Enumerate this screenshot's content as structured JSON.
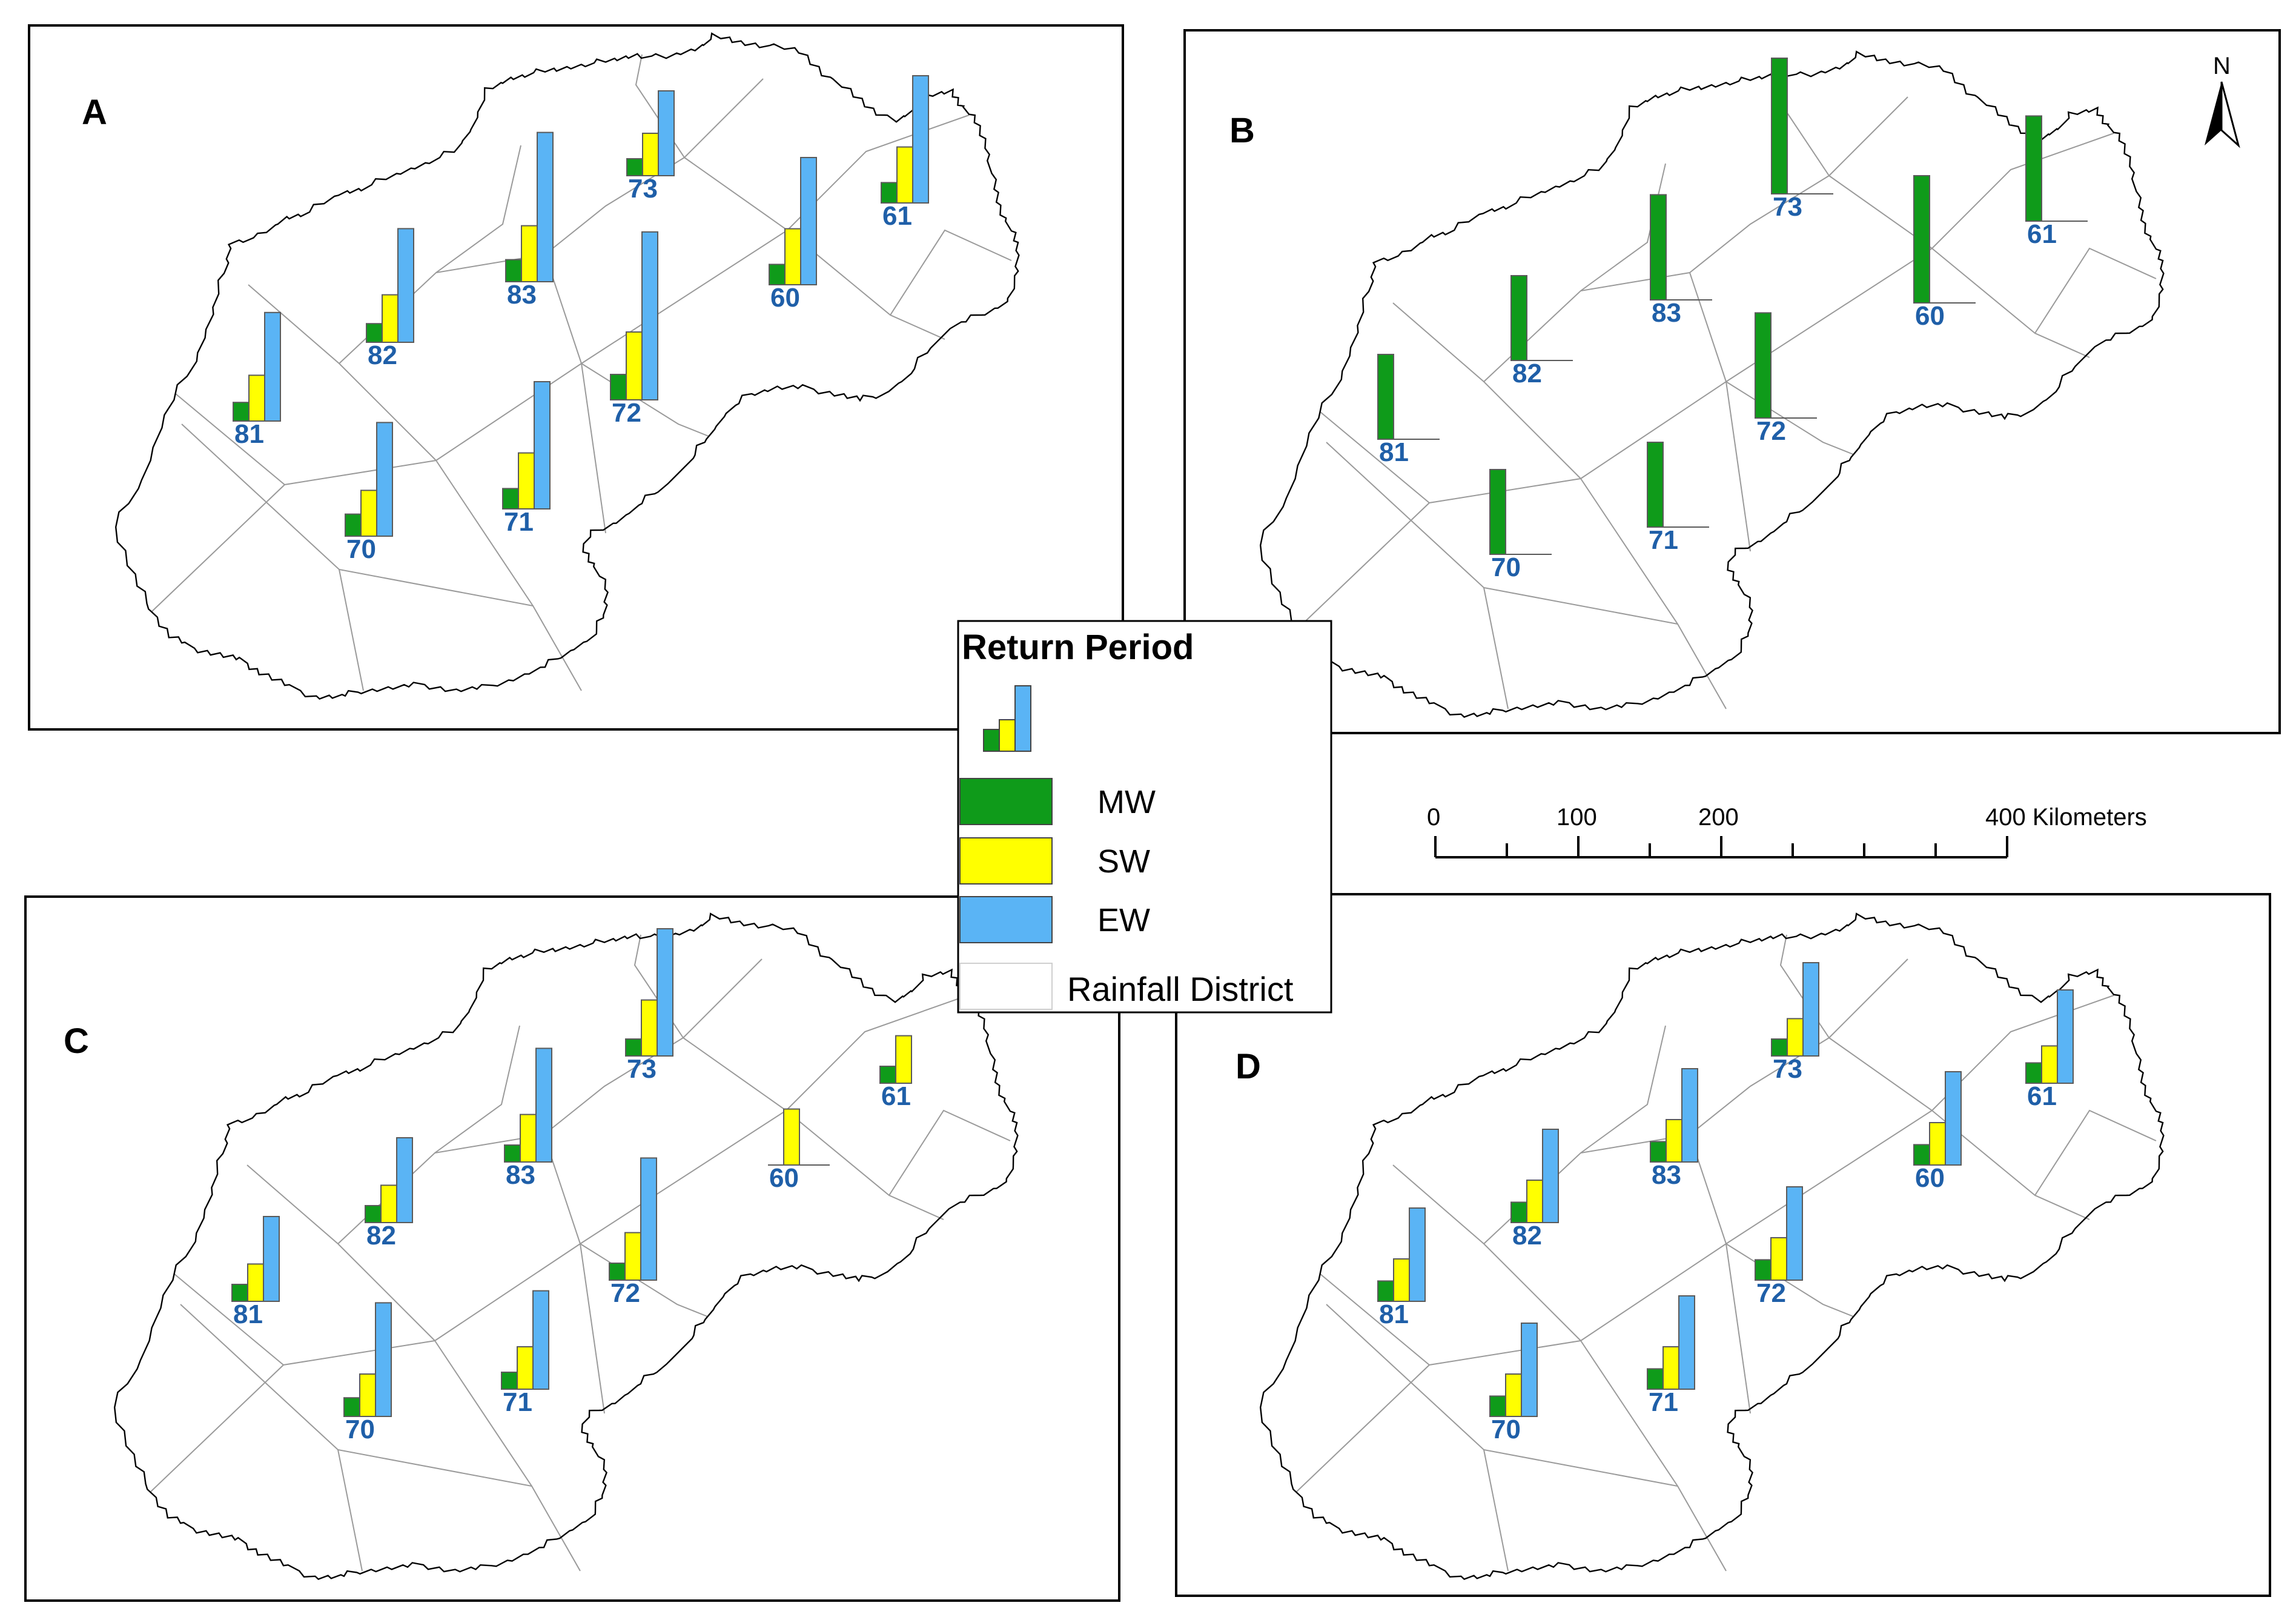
{
  "colors": {
    "MW": "#0f9b1a",
    "SW": "#ffff00",
    "EW": "#5ab4f5",
    "label": "#1f5fa8",
    "boundary": "#000000",
    "district_line": "#9a9a9a"
  },
  "panels": [
    {
      "letter": "A",
      "stations": [
        {
          "id": "73",
          "MW": 0.1,
          "SW": 0.25,
          "EW": 0.5
        },
        {
          "id": "61",
          "MW": 0.12,
          "SW": 0.33,
          "EW": 0.75
        },
        {
          "id": "83",
          "MW": 0.13,
          "SW": 0.33,
          "EW": 0.88
        },
        {
          "id": "60",
          "MW": 0.12,
          "SW": 0.33,
          "EW": 0.75
        },
        {
          "id": "82",
          "MW": 0.11,
          "SW": 0.28,
          "EW": 0.67
        },
        {
          "id": "72",
          "MW": 0.15,
          "SW": 0.4,
          "EW": 0.99
        },
        {
          "id": "81",
          "MW": 0.11,
          "SW": 0.27,
          "EW": 0.64
        },
        {
          "id": "70",
          "MW": 0.13,
          "SW": 0.27,
          "EW": 0.67
        },
        {
          "id": "71",
          "MW": 0.12,
          "SW": 0.33,
          "EW": 0.75
        }
      ]
    },
    {
      "letter": "B",
      "stations": [
        {
          "id": "73",
          "MW": 0.8,
          "SW": 0,
          "EW": 0
        },
        {
          "id": "61",
          "MW": 0.62,
          "SW": 0,
          "EW": 0
        },
        {
          "id": "83",
          "MW": 0.62,
          "SW": 0,
          "EW": 0
        },
        {
          "id": "60",
          "MW": 0.75,
          "SW": 0,
          "EW": 0
        },
        {
          "id": "82",
          "MW": 0.5,
          "SW": 0,
          "EW": 0
        },
        {
          "id": "72",
          "MW": 0.62,
          "SW": 0,
          "EW": 0
        },
        {
          "id": "81",
          "MW": 0.5,
          "SW": 0,
          "EW": 0
        },
        {
          "id": "70",
          "MW": 0.5,
          "SW": 0,
          "EW": 0
        },
        {
          "id": "71",
          "MW": 0.5,
          "SW": 0,
          "EW": 0
        }
      ]
    },
    {
      "letter": "C",
      "stations": [
        {
          "id": "73",
          "MW": 0.1,
          "SW": 0.33,
          "EW": 0.75
        },
        {
          "id": "61",
          "MW": 0.1,
          "SW": 0.28,
          "EW": 0
        },
        {
          "id": "83",
          "MW": 0.1,
          "SW": 0.28,
          "EW": 0.67
        },
        {
          "id": "60",
          "MW": 0,
          "SW": 0.33,
          "EW": 0
        },
        {
          "id": "82",
          "MW": 0.1,
          "SW": 0.22,
          "EW": 0.5
        },
        {
          "id": "72",
          "MW": 0.1,
          "SW": 0.28,
          "EW": 0.72
        },
        {
          "id": "81",
          "MW": 0.1,
          "SW": 0.22,
          "EW": 0.5
        },
        {
          "id": "70",
          "MW": 0.11,
          "SW": 0.25,
          "EW": 0.67
        },
        {
          "id": "71",
          "MW": 0.1,
          "SW": 0.25,
          "EW": 0.58
        }
      ]
    },
    {
      "letter": "D",
      "stations": [
        {
          "id": "73",
          "MW": 0.1,
          "SW": 0.22,
          "EW": 0.55
        },
        {
          "id": "61",
          "MW": 0.12,
          "SW": 0.22,
          "EW": 0.55
        },
        {
          "id": "83",
          "MW": 0.12,
          "SW": 0.25,
          "EW": 0.55
        },
        {
          "id": "60",
          "MW": 0.12,
          "SW": 0.25,
          "EW": 0.55
        },
        {
          "id": "82",
          "MW": 0.12,
          "SW": 0.25,
          "EW": 0.55
        },
        {
          "id": "72",
          "MW": 0.12,
          "SW": 0.25,
          "EW": 0.55
        },
        {
          "id": "81",
          "MW": 0.12,
          "SW": 0.25,
          "EW": 0.55
        },
        {
          "id": "70",
          "MW": 0.12,
          "SW": 0.25,
          "EW": 0.55
        },
        {
          "id": "71",
          "MW": 0.12,
          "SW": 0.25,
          "EW": 0.55
        }
      ]
    }
  ],
  "legend": {
    "title": "Return Period",
    "items": [
      {
        "key": "MW",
        "label": "MW"
      },
      {
        "key": "SW",
        "label": "SW"
      },
      {
        "key": "EW",
        "label": "EW"
      }
    ],
    "district_label": "Rainfall District"
  },
  "scalebar": {
    "ticks": [
      "0",
      "100",
      "200",
      "400 Kilometers"
    ]
  },
  "north_arrow": {
    "label": "N"
  }
}
